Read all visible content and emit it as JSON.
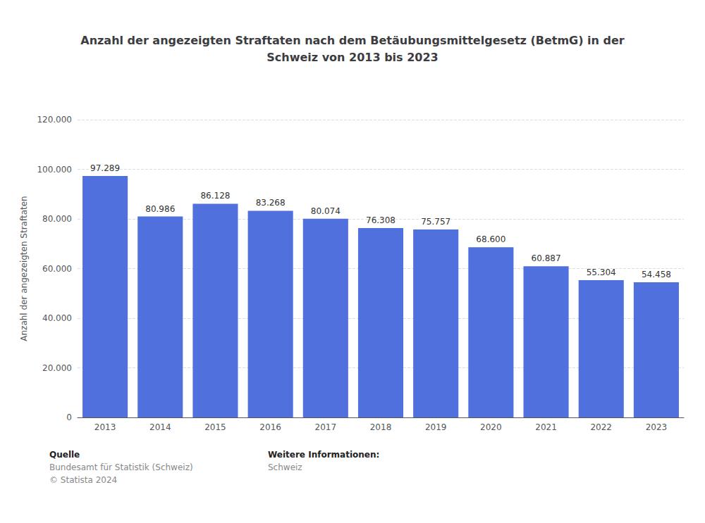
{
  "chart_data": {
    "type": "bar",
    "title": "Anzahl der angezeigten Straftaten nach dem Betäubungsmittelgesetz (BetmG) in der\nSchweiz von 2013 bis 2023",
    "categories": [
      "2013",
      "2014",
      "2015",
      "2016",
      "2017",
      "2018",
      "2019",
      "2020",
      "2021",
      "2022",
      "2023"
    ],
    "values": [
      97289,
      80986,
      86128,
      83268,
      80074,
      76308,
      75757,
      68600,
      60887,
      55304,
      54458
    ],
    "value_labels": [
      "97.289",
      "80.986",
      "86.128",
      "83.268",
      "80.074",
      "76.308",
      "75.757",
      "68.600",
      "60.887",
      "55.304",
      "54.458"
    ],
    "data_labels": true,
    "ylabel": "Anzahl der angezeigten Straftaten",
    "ylim": [
      0,
      120000
    ],
    "yticks": [
      0,
      {
        "value": 20000,
        "label": "20.000"
      },
      {
        "value": 40000,
        "label": "40.000"
      },
      {
        "value": 60000,
        "label": "60.000"
      },
      {
        "value": 80000,
        "label": "80.000"
      },
      {
        "value": 100000,
        "label": "100.000"
      },
      {
        "value": 120000,
        "label": "120.000"
      }
    ],
    "grid": true,
    "annotations": [
      [
        "Quelle",
        "Bundesamt für Statistik (Schweiz)",
        "© Statista 2024"
      ],
      [
        "Weitere Informationen:",
        "Schweiz"
      ]
    ]
  }
}
